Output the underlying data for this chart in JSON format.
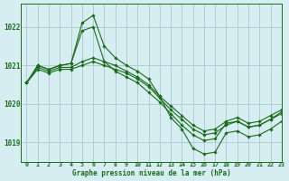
{
  "title": "Graphe pression niveau de la mer (hPa)",
  "bg_color": "#d6eef2",
  "grid_color": "#b0cdd4",
  "line_color": "#1a6b1a",
  "xlim": [
    -0.5,
    23
  ],
  "ylim": [
    1018.5,
    1022.6
  ],
  "yticks": [
    1019,
    1020,
    1021,
    1022
  ],
  "series": [
    [
      1020.55,
      1021.0,
      1020.9,
      1021.0,
      1021.05,
      1022.1,
      1022.3,
      1021.5,
      1021.2,
      1021.0,
      1020.85,
      1020.65,
      1020.2,
      1019.65,
      1019.35,
      1018.85,
      1018.7,
      1018.75,
      1019.25,
      1019.3,
      1019.15,
      1019.2,
      1019.35,
      1019.55
    ],
    [
      1020.55,
      1021.0,
      1020.9,
      1021.0,
      1021.05,
      1021.9,
      1022.0,
      1021.1,
      1020.85,
      1020.7,
      1020.55,
      1020.3,
      1020.05,
      1019.75,
      1019.45,
      1019.2,
      1019.05,
      1019.1,
      1019.5,
      1019.55,
      1019.4,
      1019.45,
      1019.6,
      1019.75
    ],
    [
      1020.55,
      1020.95,
      1020.85,
      1020.95,
      1020.95,
      1021.1,
      1021.2,
      1021.1,
      1021.0,
      1020.85,
      1020.7,
      1020.5,
      1020.2,
      1019.95,
      1019.7,
      1019.45,
      1019.3,
      1019.35,
      1019.55,
      1019.65,
      1019.5,
      1019.55,
      1019.7,
      1019.85
    ],
    [
      1020.55,
      1020.9,
      1020.8,
      1020.9,
      1020.9,
      1021.0,
      1021.1,
      1021.0,
      1020.9,
      1020.8,
      1020.65,
      1020.45,
      1020.15,
      1019.85,
      1019.6,
      1019.35,
      1019.2,
      1019.25,
      1019.45,
      1019.55,
      1019.4,
      1019.45,
      1019.6,
      1019.8
    ]
  ]
}
